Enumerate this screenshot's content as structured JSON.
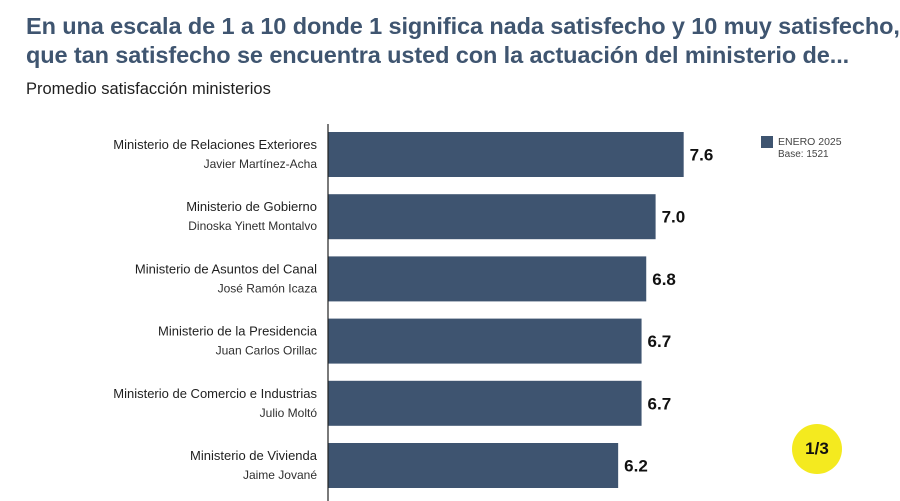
{
  "title_line1": "En una escala de 1 a 10 donde 1 significa nada satisfecho y 10 muy satisfecho,",
  "title_line2": "que tan satisfecho se encuentra usted con la actuación del ministerio de...",
  "subtitle": "Promedio satisfacción ministerios",
  "legend": {
    "label": "ENERO 2025",
    "base": "Base: 1521"
  },
  "page_indicator": "1/3",
  "colors": {
    "title": "#3f5570",
    "bar": "#3e5470",
    "axis": "#222222",
    "badge": "#f4ea1f"
  },
  "chart_data": {
    "type": "bar",
    "orientation": "horizontal",
    "title": "Promedio satisfacción ministerios",
    "xlim": [
      0,
      10
    ],
    "series": [
      {
        "name": "ENERO 2025",
        "values": [
          7.6,
          7.0,
          6.8,
          6.7,
          6.7,
          6.2
        ]
      }
    ],
    "categories": [
      {
        "name": "Ministerio de Relaciones Exteriores",
        "person": "Javier Martínez-Acha",
        "value": 7.6,
        "label": "7.6"
      },
      {
        "name": "Ministerio de Gobierno",
        "person": "Dinoska Yinett Montalvo",
        "value": 7.0,
        "label": "7.0"
      },
      {
        "name": "Ministerio de Asuntos del Canal",
        "person": "José Ramón Icaza",
        "value": 6.8,
        "label": "6.8"
      },
      {
        "name": "Ministerio de la Presidencia",
        "person": "Juan Carlos Orillac",
        "value": 6.7,
        "label": "6.7"
      },
      {
        "name": "Ministerio de Comercio e Industrias",
        "person": "Julio Moltó",
        "value": 6.7,
        "label": "6.7"
      },
      {
        "name": "Ministerio de Vivienda",
        "person": "Jaime Jované",
        "value": 6.2,
        "label": "6.2"
      }
    ]
  }
}
